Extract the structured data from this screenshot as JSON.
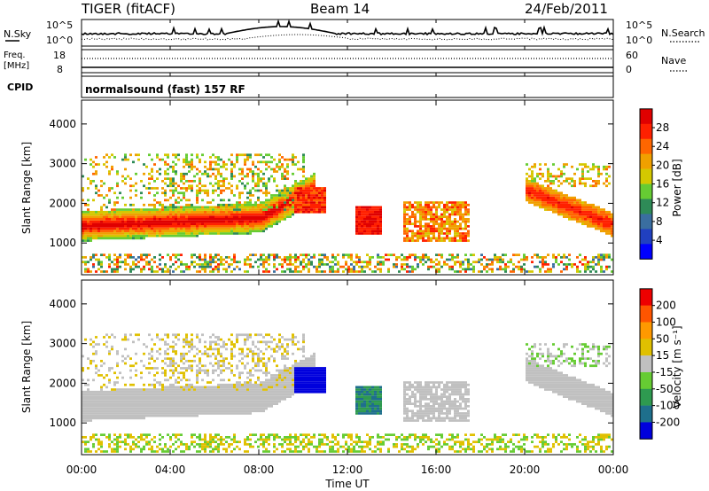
{
  "header": {
    "title": "TIGER (fitACF)",
    "beam": "Beam 14",
    "date": "24/Feb/2011"
  },
  "sky_panel": {
    "left_label": "N.Sky",
    "right_label": "N.Search",
    "left_ticks": [
      "10^5",
      "10^0"
    ],
    "right_ticks": [
      "10^5",
      "10^0"
    ]
  },
  "freq_panel": {
    "left_label_1": "Freq.",
    "left_label_2": "[MHz]",
    "right_label": "Nave",
    "left_ticks": [
      "18",
      "8"
    ],
    "right_ticks": [
      "60",
      "0"
    ]
  },
  "cpid_panel": {
    "left_label": "CPID",
    "mode_text": "normalsound (fast) 157 RF"
  },
  "chart_data": [
    {
      "type": "heatmap",
      "name": "power",
      "ylabel": "Slant Range [km]",
      "yticks": [
        "1000",
        "2000",
        "3000",
        "4000"
      ],
      "ylim": [
        200,
        4600
      ],
      "x_range_hours": [
        0,
        24
      ],
      "colorbar_label": "Power [dB]",
      "colorbar_ticks": [
        "4",
        "8",
        "12",
        "16",
        "20",
        "24",
        "28"
      ],
      "colorbar_colors": [
        "#0000ff",
        "#2040c0",
        "#3a6ea0",
        "#2e8b57",
        "#66cc33",
        "#d4c800",
        "#f0a000",
        "#ff6600",
        "#ff2000",
        "#e00000"
      ]
    },
    {
      "type": "heatmap",
      "name": "velocity",
      "ylabel": "Slant Range [km]",
      "yticks": [
        "1000",
        "2000",
        "3000",
        "4000"
      ],
      "ylim": [
        200,
        4600
      ],
      "x_range_hours": [
        0,
        24
      ],
      "colorbar_label": "Velocity [m s⁻¹]",
      "colorbar_ticks": [
        "200",
        "100",
        "50",
        "15",
        "-15",
        "-50",
        "-100",
        "-200"
      ],
      "colorbar_colors": [
        "#0000dd",
        "#1e6f8c",
        "#2e9a50",
        "#66cc33",
        "#c0c0c0",
        "#e0c000",
        "#ff9900",
        "#ff5500",
        "#ee0000"
      ]
    }
  ],
  "x_axis": {
    "label": "Time UT",
    "ticks": [
      "00:00",
      "04:00",
      "08:00",
      "12:00",
      "16:00",
      "20:00",
      "00:00"
    ]
  }
}
